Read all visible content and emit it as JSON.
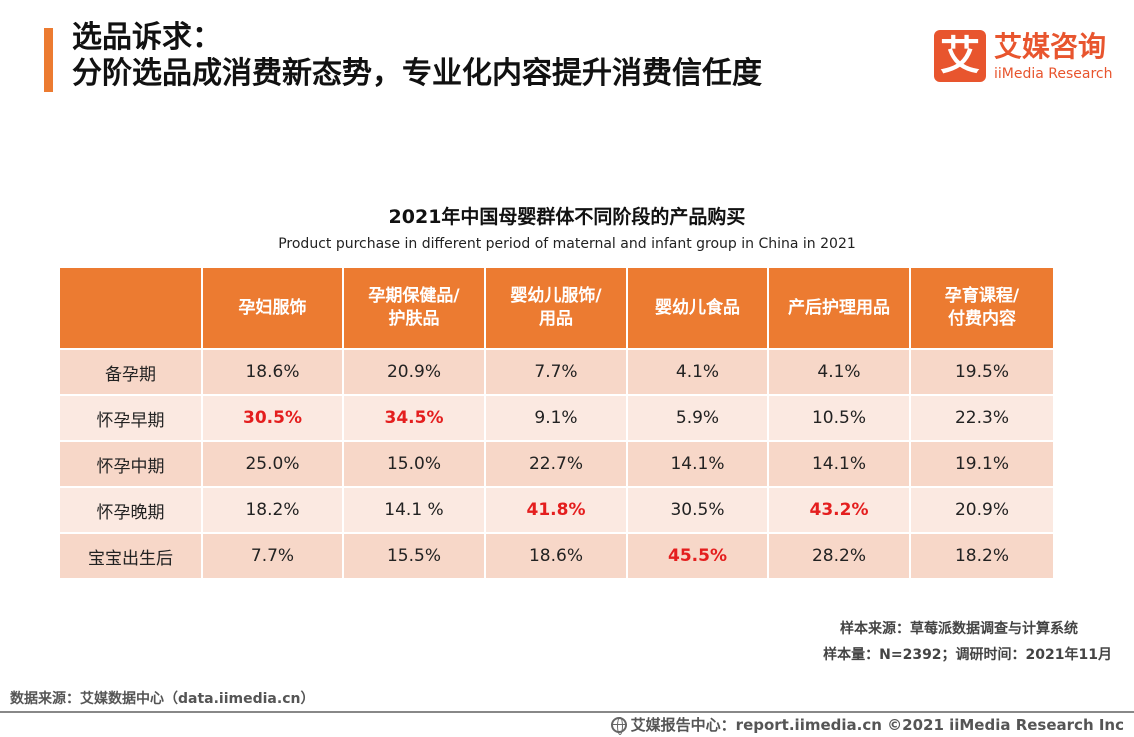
{
  "header": {
    "title_line1": "选品诉求：",
    "title_line2": "分阶选品成消费新态势，专业化内容提升消费信任度"
  },
  "logo": {
    "mark": "艾",
    "name_cn": "艾媒咨询",
    "name_en": "iiMedia Research",
    "color": "#e8552e"
  },
  "chart_data": {
    "type": "table",
    "title": "2021年中国母婴群体不同阶段的产品购买",
    "subtitle": "Product purchase in different period of maternal and infant group in China in 2021",
    "corner_header": "",
    "columns": [
      [
        "孕妇服饰"
      ],
      [
        "孕期保健品/",
        "护肤品"
      ],
      [
        "婴幼儿服饰/",
        "用品"
      ],
      [
        "婴幼儿食品"
      ],
      [
        "产后护理用品"
      ],
      [
        "孕育课程/",
        "付费内容"
      ]
    ],
    "rows": [
      {
        "label": "备孕期",
        "values": [
          "18.6%",
          "20.9%",
          "7.7%",
          "4.1%",
          "4.1%",
          "19.5%"
        ],
        "highlight": [
          false,
          false,
          false,
          false,
          false,
          false
        ]
      },
      {
        "label": "怀孕早期",
        "values": [
          "30.5%",
          "34.5%",
          "9.1%",
          "5.9%",
          "10.5%",
          "22.3%"
        ],
        "highlight": [
          true,
          true,
          false,
          false,
          false,
          false
        ]
      },
      {
        "label": "怀孕中期",
        "values": [
          "25.0%",
          "15.0%",
          "22.7%",
          "14.1%",
          "14.1%",
          "19.1%"
        ],
        "highlight": [
          false,
          false,
          false,
          false,
          false,
          false
        ]
      },
      {
        "label": "怀孕晚期",
        "values": [
          "18.2%",
          "14.1 %",
          "41.8%",
          "30.5%",
          "43.2%",
          "20.9%"
        ],
        "highlight": [
          false,
          false,
          true,
          false,
          true,
          false
        ]
      },
      {
        "label": "宝宝出生后",
        "values": [
          "7.7%",
          "15.5%",
          "18.6%",
          "45.5%",
          "28.2%",
          "18.2%"
        ],
        "highlight": [
          false,
          false,
          false,
          true,
          false,
          false
        ]
      }
    ],
    "header_color": "#ec7b31",
    "row_colors": [
      "#f7d7c8",
      "#fbe9e1"
    ],
    "highlight_color": "#e41e1e"
  },
  "notes": {
    "source": "样本来源：草莓派数据调查与计算系统",
    "sample": "样本量：N=2392；调研时间：2021年11月"
  },
  "data_source": "数据来源：艾媒数据中心（data.iimedia.cn）",
  "footer": {
    "icon": "globe-icon",
    "text": "艾媒报告中心：report.iimedia.cn  ©2021  iiMedia Research  Inc"
  }
}
